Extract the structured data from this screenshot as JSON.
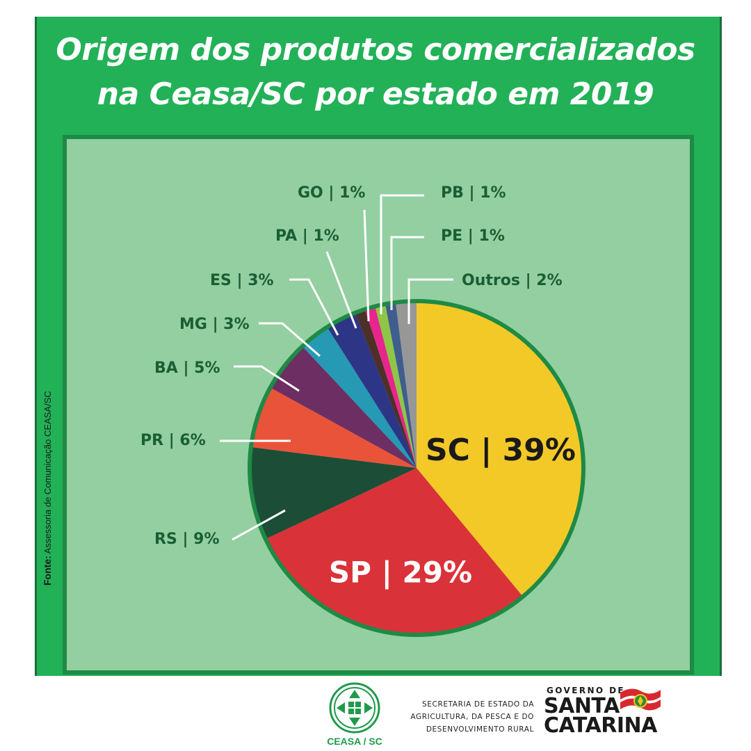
{
  "title": {
    "line1": "Origem dos produtos comercializados",
    "line2": "na Ceasa/SC por estado em 2019"
  },
  "source": {
    "label": "Fonte:",
    "text": "Assessoria de Comunicação CEASA/SC"
  },
  "footer": {
    "ceasa_name": "CEASA / SC",
    "secretaria": [
      "SECRETARIA DE ESTADO DA",
      "AGRICULTURA, DA PESCA E DO",
      "DESENVOLVIMENTO RURAL"
    ],
    "governo": "GOVERNO DE",
    "santa": "SANTA",
    "catarina": "CATARINA"
  },
  "colors": {
    "poster_green": "#22b157",
    "panel_green": "#93cfa0",
    "label_text": "#1a5e34"
  },
  "chart_data": {
    "type": "pie",
    "start": "12 o'clock, clockwise",
    "slices": [
      {
        "label": "SC | 39%",
        "name": "SC",
        "value": 39,
        "color": "#f3c928",
        "label_place": "inside",
        "text_color": "#1a1a1a"
      },
      {
        "label": "SP | 29%",
        "name": "SP",
        "value": 29,
        "color": "#da3239",
        "label_place": "inside",
        "text_color": "#ffffff"
      },
      {
        "label": "RS | 9%",
        "name": "RS",
        "value": 9,
        "color": "#1c4e37",
        "label_place": "outside"
      },
      {
        "label": "PR | 6%",
        "name": "PR",
        "value": 6,
        "color": "#e9533a",
        "label_place": "outside"
      },
      {
        "label": "BA | 5%",
        "name": "BA",
        "value": 5,
        "color": "#6d2f63",
        "label_place": "outside"
      },
      {
        "label": "MG | 3%",
        "name": "MG",
        "value": 3,
        "color": "#2699b5",
        "label_place": "outside"
      },
      {
        "label": "ES | 3%",
        "name": "ES",
        "value": 3,
        "color": "#2d3586",
        "label_place": "outside"
      },
      {
        "label": "PA | 1%",
        "name": "PA",
        "value": 1,
        "color": "#4d3028",
        "label_place": "outside"
      },
      {
        "label": "GO | 1%",
        "name": "GO",
        "value": 1,
        "color": "#e8258d",
        "label_place": "outside"
      },
      {
        "label": "PB | 1%",
        "name": "PB",
        "value": 1,
        "color": "#8ec648",
        "label_place": "outside"
      },
      {
        "label": "PE | 1%",
        "name": "PE",
        "value": 1,
        "color": "#3f5e8e",
        "label_place": "outside"
      },
      {
        "label": "Outros | 2%",
        "name": "Outros",
        "value": 2,
        "color": "#979797",
        "label_place": "outside"
      }
    ],
    "legend": "none"
  }
}
